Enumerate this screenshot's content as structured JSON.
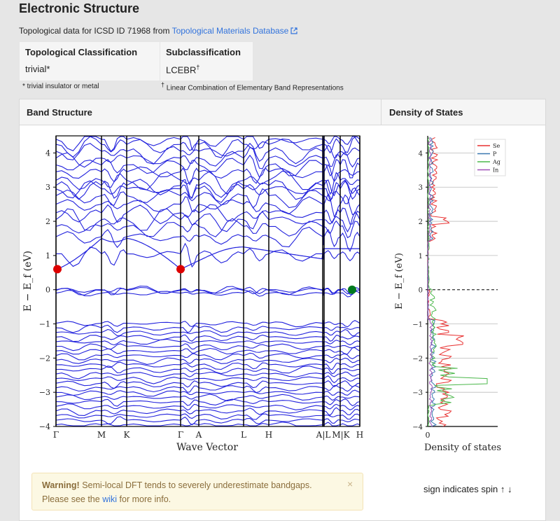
{
  "header": {
    "title": "Electronic Structure",
    "source_prefix": "Topological data for ICSD ID 71968 from",
    "source_link": "Topological Materials Database"
  },
  "topology": {
    "classification_header": "Topological Classification",
    "classification_value": "trivial*",
    "sub_header": "Subclassification",
    "sub_value": "LCEBR",
    "sub_mark": "†",
    "note_trivial": "* trivial insulator or metal",
    "note_lcebr_mark": "†",
    "note_lcebr": "Linear Combination of Elementary Band Representations"
  },
  "panel": {
    "band_header": "Band Structure",
    "dos_header": "Density of States"
  },
  "warning": {
    "bold": "Warning!",
    "text1": "Semi-local DFT tends to severely underestimate bandgaps.",
    "text2_prefix": "Please see the",
    "link": "wiki",
    "text2_suffix": "for more info.",
    "close": "×"
  },
  "spin_note": "sign indicates spin ↑ ↓",
  "chart_data": [
    {
      "type": "line",
      "title": "",
      "xlabel": "Wave Vector",
      "ylabel": "E − E_f (eV)",
      "ylim": [
        -4,
        4.5
      ],
      "yticks": [
        -4,
        -3,
        -2,
        -1,
        0,
        1,
        2,
        3,
        4
      ],
      "x_tick_labels": [
        "Γ",
        "M",
        "K",
        "Γ",
        "A",
        "L",
        "H",
        "A|L",
        "M|K",
        "H"
      ],
      "band_color": "#2222dd",
      "band_extrema": [
        {
          "label": "VBM",
          "k": "M|K",
          "energy": 0.0,
          "color": "#007a1e"
        },
        {
          "label": "CBM",
          "k": "Γ",
          "energy": 0.6,
          "color": "#dd0000"
        }
      ]
    },
    {
      "type": "line",
      "xlabel": "Density of states",
      "ylabel": "E − E_f (eV)",
      "ylim": [
        -4,
        4.5
      ],
      "x_tick_labels": [
        "0"
      ],
      "legend_position": "top-right",
      "series": [
        {
          "name": "Se",
          "color": "#e83030"
        },
        {
          "name": "P",
          "color": "#3a78b0"
        },
        {
          "name": "Ag",
          "color": "#4cb84c"
        },
        {
          "name": "In",
          "color": "#a050b8"
        }
      ]
    }
  ]
}
